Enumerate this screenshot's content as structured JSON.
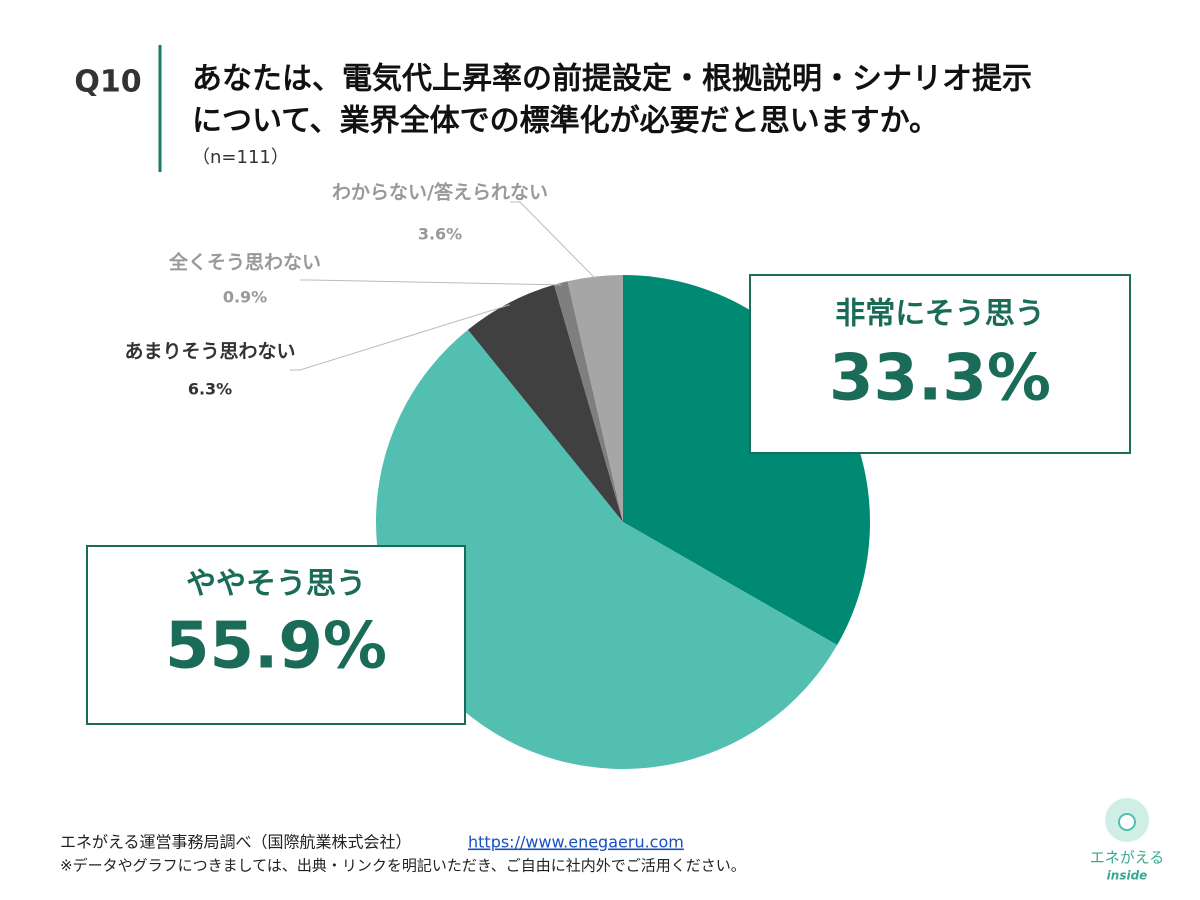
{
  "header": {
    "number": "Q10",
    "question": [
      "あなたは、電気代上昇率の前提設定・根拠説明・シナリオ提示",
      "について、業界全体での標準化が必要だと思いますか。"
    ],
    "sample": "（n=111）"
  },
  "chart_data": {
    "type": "pie",
    "categories": [
      "非常にそう思う",
      "ややそう思う",
      "あまりそう思わない",
      "全くそう思わない",
      "わからない/答えられない"
    ],
    "values": [
      33.3,
      55.9,
      6.3,
      0.9,
      3.6
    ],
    "value_labels": [
      "33.3%",
      "55.9%",
      "6.3%",
      "0.9%",
      "3.6%"
    ],
    "colors": [
      "#008a74",
      "#52bfb0",
      "#404040",
      "#7f7f7f",
      "#a6a6a6"
    ]
  },
  "footer": {
    "source": "エネがえる運営事務局調べ（国際航業株式会社）",
    "url": "https://www.enegaeru.com",
    "note": "※データやグラフにつきましては、出典・リンクを明記いただき、ご自由に社内外でご活用ください。"
  },
  "logo": {
    "name": "エネがえる",
    "sub": "inside"
  }
}
